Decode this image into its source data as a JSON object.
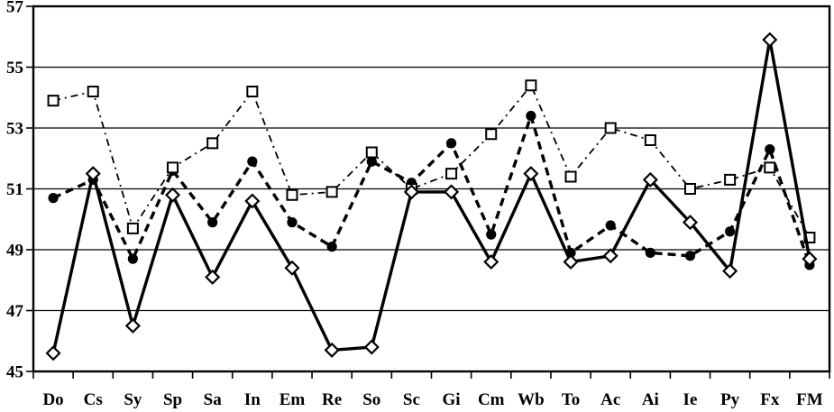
{
  "chart_data": {
    "type": "line",
    "title": "",
    "xlabel": "",
    "ylabel": "",
    "categories": [
      "Do",
      "Cs",
      "Sy",
      "Sp",
      "Sa",
      "In",
      "Em",
      "Re",
      "So",
      "Sc",
      "Gi",
      "Cm",
      "Wb",
      "To",
      "Ac",
      "Ai",
      "Ie",
      "Py",
      "Fx",
      "FM"
    ],
    "y_axis": {
      "min": 45,
      "max": 57,
      "tick_step": 2,
      "tick_labels": [
        "45",
        "47",
        "49",
        "51",
        "53",
        "55",
        "57"
      ]
    },
    "grid": true,
    "legend_position": "none",
    "colors": {
      "foreground": "#000000",
      "background": "#ffffff"
    },
    "series": [
      {
        "name": "filled-circle-dashed",
        "line_style": "dashed",
        "marker": "filled-circle",
        "color": "#000000",
        "values": [
          50.7,
          51.3,
          48.7,
          51.6,
          49.9,
          51.9,
          49.9,
          49.1,
          51.9,
          51.2,
          52.5,
          49.5,
          53.4,
          48.9,
          49.8,
          48.9,
          48.8,
          49.6,
          52.3,
          48.5
        ]
      },
      {
        "name": "open-square-dash-dot",
        "line_style": "dash-dot",
        "marker": "open-square",
        "color": "#000000",
        "values": [
          53.9,
          54.2,
          49.7,
          51.7,
          52.5,
          54.2,
          50.8,
          50.9,
          52.2,
          51.0,
          51.5,
          52.8,
          54.4,
          51.4,
          53.0,
          52.6,
          51.0,
          51.3,
          51.7,
          49.4
        ]
      },
      {
        "name": "open-diamond-solid",
        "line_style": "solid",
        "marker": "open-diamond",
        "color": "#000000",
        "values": [
          45.6,
          51.5,
          46.5,
          50.8,
          48.1,
          50.6,
          48.4,
          45.7,
          45.8,
          50.9,
          50.9,
          48.6,
          51.5,
          48.6,
          48.8,
          51.3,
          49.9,
          48.3,
          55.9,
          48.7
        ]
      }
    ]
  }
}
